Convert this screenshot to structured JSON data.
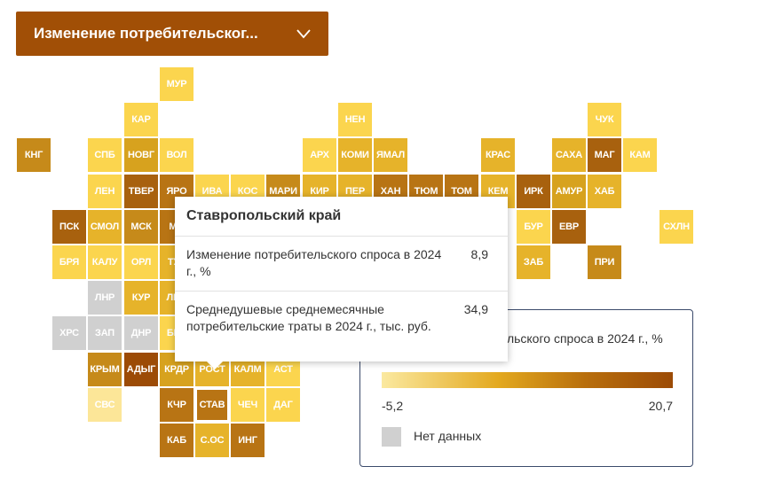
{
  "dropdown": {
    "label": "Изменение потребительског...",
    "icon": "chevron-down-icon"
  },
  "tooltip": {
    "title": "Ставропольский край",
    "rows": [
      {
        "name": "Изменение потребительского спроса в 2024 г., %",
        "value": "8,9"
      },
      {
        "name": "Среднедушевые среднемесячные потребительские траты в 2024 г., тыс. руб.",
        "value": "34,9"
      }
    ]
  },
  "legend": {
    "title": "Изменение потребительского спроса в 2024 г., %",
    "min": "-5,2",
    "max": "20,7",
    "no_data_label": "Нет данных",
    "no_data_color": "#d0d0d0"
  },
  "regions": [
    {
      "label": "МУР",
      "col": 4,
      "row": 0,
      "color": "#fbd54e"
    },
    {
      "label": "КАР",
      "col": 3,
      "row": 1,
      "color": "#fbd54e"
    },
    {
      "label": "НЕН",
      "col": 9,
      "row": 1,
      "color": "#fbd54e"
    },
    {
      "label": "ЧУК",
      "col": 16,
      "row": 1,
      "color": "#fbd54e"
    },
    {
      "label": "КНГ",
      "col": 0,
      "row": 2,
      "color": "#c68a1a"
    },
    {
      "label": "СПБ",
      "col": 2,
      "row": 2,
      "color": "#fbd54e"
    },
    {
      "label": "НОВГ",
      "col": 3,
      "row": 2,
      "color": "#d7a21e"
    },
    {
      "label": "ВОЛ",
      "col": 4,
      "row": 2,
      "color": "#fbd54e"
    },
    {
      "label": "АРХ",
      "col": 8,
      "row": 2,
      "color": "#fbd54e"
    },
    {
      "label": "КОМИ",
      "col": 9,
      "row": 2,
      "color": "#e6b32a"
    },
    {
      "label": "ЯМАЛ",
      "col": 10,
      "row": 2,
      "color": "#e6b32a"
    },
    {
      "label": "КРАС",
      "col": 13,
      "row": 2,
      "color": "#e6b32a"
    },
    {
      "label": "САХА",
      "col": 15,
      "row": 2,
      "color": "#e6b32a"
    },
    {
      "label": "МАГ",
      "col": 16,
      "row": 2,
      "color": "#a8610e"
    },
    {
      "label": "КАМ",
      "col": 17,
      "row": 2,
      "color": "#fbd54e"
    },
    {
      "label": "ЛЕН",
      "col": 2,
      "row": 3,
      "color": "#fbd54e"
    },
    {
      "label": "ТВЕР",
      "col": 3,
      "row": 3,
      "color": "#a8610e"
    },
    {
      "label": "ЯРО",
      "col": 4,
      "row": 3,
      "color": "#b87414"
    },
    {
      "label": "ИВА",
      "col": 5,
      "row": 3,
      "color": "#fbd54e"
    },
    {
      "label": "КОС",
      "col": 6,
      "row": 3,
      "color": "#fbd54e"
    },
    {
      "label": "МАРИ",
      "col": 7,
      "row": 3,
      "color": "#c68a1a"
    },
    {
      "label": "КИР",
      "col": 8,
      "row": 3,
      "color": "#e6b32a"
    },
    {
      "label": "ПЕР",
      "col": 9,
      "row": 3,
      "color": "#e6b32a"
    },
    {
      "label": "ХАН",
      "col": 10,
      "row": 3,
      "color": "#b87414"
    },
    {
      "label": "ТЮМ",
      "col": 11,
      "row": 3,
      "color": "#b87414"
    },
    {
      "label": "ТОМ",
      "col": 12,
      "row": 3,
      "color": "#b87414"
    },
    {
      "label": "КЕМ",
      "col": 13,
      "row": 3,
      "color": "#e6b32a"
    },
    {
      "label": "ИРК",
      "col": 14,
      "row": 3,
      "color": "#a8610e"
    },
    {
      "label": "АМУР",
      "col": 15,
      "row": 3,
      "color": "#d7a21e"
    },
    {
      "label": "ХАБ",
      "col": 16,
      "row": 3,
      "color": "#e6b32a"
    },
    {
      "label": "ПСК",
      "col": 1,
      "row": 4,
      "color": "#a8610e"
    },
    {
      "label": "СМОЛ",
      "col": 2,
      "row": 4,
      "color": "#e6b32a"
    },
    {
      "label": "МСК",
      "col": 3,
      "row": 4,
      "color": "#c68a1a"
    },
    {
      "label": "МО",
      "col": 4,
      "row": 4,
      "color": "#b87414"
    },
    {
      "label": "БУР",
      "col": 14,
      "row": 4,
      "color": "#fbd54e"
    },
    {
      "label": "ЕВР",
      "col": 15,
      "row": 4,
      "color": "#a8610e"
    },
    {
      "label": "СХЛН",
      "col": 18,
      "row": 4,
      "color": "#fbd54e"
    },
    {
      "label": "БРЯ",
      "col": 1,
      "row": 5,
      "color": "#fbd54e"
    },
    {
      "label": "КАЛУ",
      "col": 2,
      "row": 5,
      "color": "#fbd54e"
    },
    {
      "label": "ОРЛ",
      "col": 3,
      "row": 5,
      "color": "#fbd54e"
    },
    {
      "label": "ТУЛ",
      "col": 4,
      "row": 5,
      "color": "#e6b32a"
    },
    {
      "label": "ЗАБ",
      "col": 14,
      "row": 5,
      "color": "#e6b32a"
    },
    {
      "label": "ПРИ",
      "col": 16,
      "row": 5,
      "color": "#c68a1a"
    },
    {
      "label": "ЛНР",
      "col": 2,
      "row": 6,
      "color": "#d0d0d0"
    },
    {
      "label": "КУР",
      "col": 3,
      "row": 6,
      "color": "#e6b32a"
    },
    {
      "label": "ЛИП",
      "col": 4,
      "row": 6,
      "color": "#e6b32a"
    },
    {
      "label": "ХРС",
      "col": 1,
      "row": 7,
      "color": "#d0d0d0"
    },
    {
      "label": "ЗАП",
      "col": 2,
      "row": 7,
      "color": "#d0d0d0"
    },
    {
      "label": "ДНР",
      "col": 3,
      "row": 7,
      "color": "#d0d0d0"
    },
    {
      "label": "БЕЛ",
      "col": 4,
      "row": 7,
      "color": "#fbd54e"
    },
    {
      "label": "КРЫМ",
      "col": 2,
      "row": 8,
      "color": "#c68a1a"
    },
    {
      "label": "АДЫГ",
      "col": 3,
      "row": 8,
      "color": "#9c4b06"
    },
    {
      "label": "КРДР",
      "col": 4,
      "row": 8,
      "color": "#d7a21e"
    },
    {
      "label": "РОСТ",
      "col": 5,
      "row": 8,
      "color": "#e6b32a"
    },
    {
      "label": "КАЛМ",
      "col": 6,
      "row": 8,
      "color": "#e6b32a"
    },
    {
      "label": "АСТ",
      "col": 7,
      "row": 8,
      "color": "#fbd54e"
    },
    {
      "label": "СВС",
      "col": 2,
      "row": 9,
      "color": "#fce698"
    },
    {
      "label": "КЧР",
      "col": 4,
      "row": 9,
      "color": "#b87414"
    },
    {
      "label": "СТАВ",
      "col": 5,
      "row": 9,
      "color": "#b87414",
      "selected": true
    },
    {
      "label": "ЧЕЧ",
      "col": 6,
      "row": 9,
      "color": "#fbd54e"
    },
    {
      "label": "ДАГ",
      "col": 7,
      "row": 9,
      "color": "#fbd54e"
    },
    {
      "label": "КАБ",
      "col": 4,
      "row": 10,
      "color": "#b87414"
    },
    {
      "label": "С.ОС",
      "col": 5,
      "row": 10,
      "color": "#e6b32a"
    },
    {
      "label": "ИНГ",
      "col": 6,
      "row": 10,
      "color": "#b87414"
    }
  ]
}
